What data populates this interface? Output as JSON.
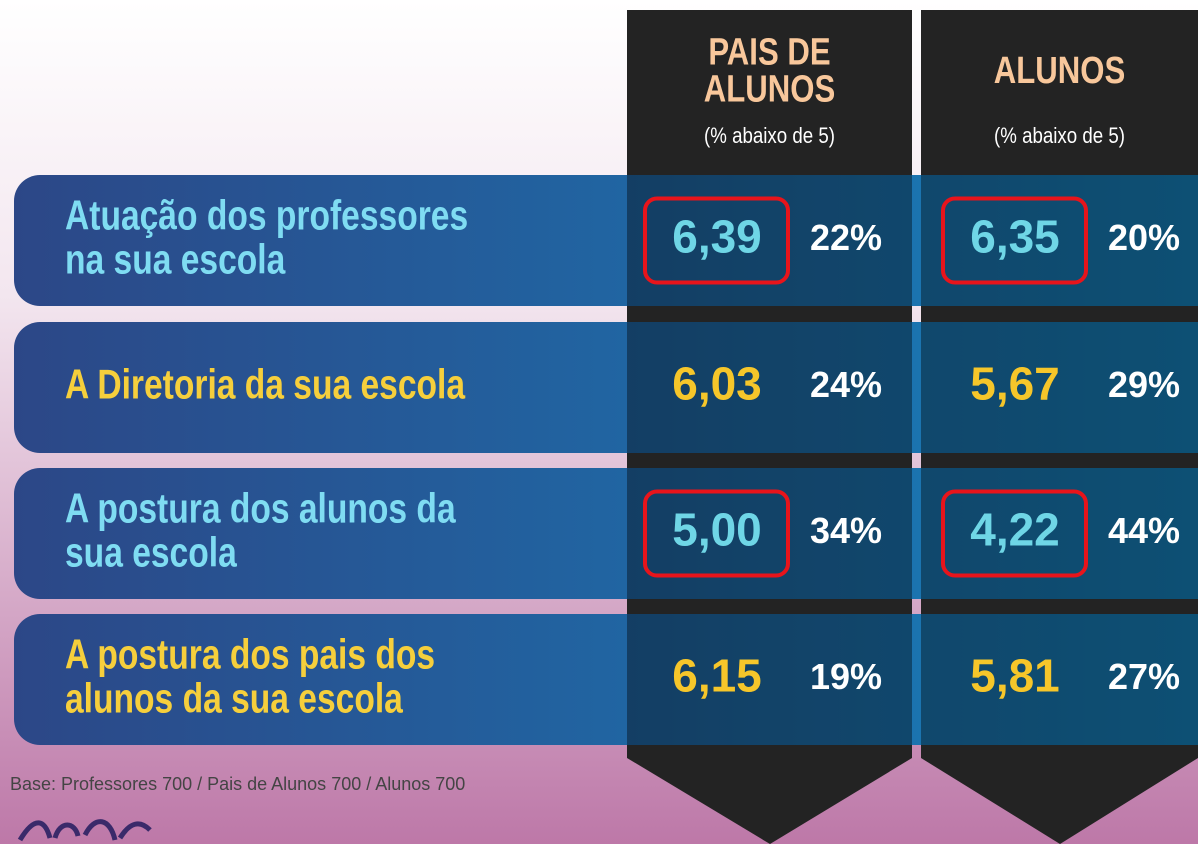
{
  "columns": [
    {
      "title": [
        "PAIS DE",
        "ALUNOS"
      ],
      "subtitle": "(% abaixo de 5)"
    },
    {
      "title": [
        "ALUNOS"
      ],
      "subtitle": "(% abaixo de 5)"
    }
  ],
  "rows": [
    {
      "label": [
        "Atuação dos professores",
        "na sua escola"
      ],
      "cells": [
        {
          "value": "6,39",
          "percent": "22%",
          "highlighted": true
        },
        {
          "value": "6,35",
          "percent": "20%",
          "highlighted": true
        }
      ]
    },
    {
      "label": [
        "A Diretoria da sua escola"
      ],
      "cells": [
        {
          "value": "6,03",
          "percent": "24%",
          "highlighted": false
        },
        {
          "value": "5,67",
          "percent": "29%",
          "highlighted": false
        }
      ]
    },
    {
      "label": [
        "A postura dos alunos da",
        "sua escola"
      ],
      "cells": [
        {
          "value": "5,00",
          "percent": "34%",
          "highlighted": true
        },
        {
          "value": "4,22",
          "percent": "44%",
          "highlighted": true
        }
      ]
    },
    {
      "label": [
        "A postura dos pais dos",
        "alunos da sua escola"
      ],
      "cells": [
        {
          "value": "6,15",
          "percent": "19%",
          "highlighted": false
        },
        {
          "value": "5,81",
          "percent": "27%",
          "highlighted": false
        }
      ]
    }
  ],
  "footer": "Base: Professores 700 / Pais de Alunos 700 / Alunos 700"
}
